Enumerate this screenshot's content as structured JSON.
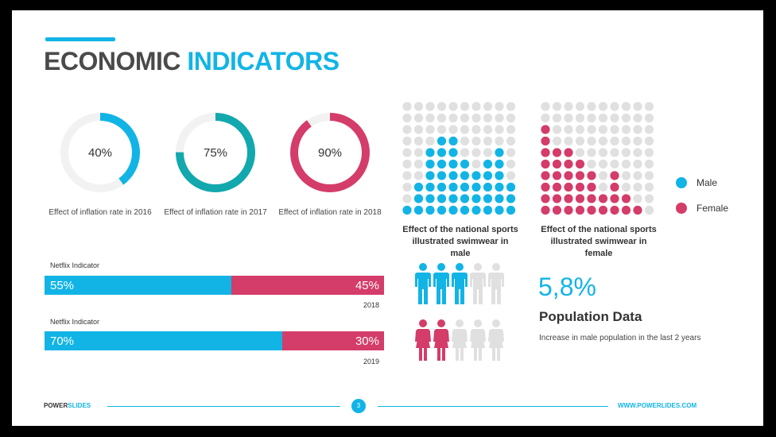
{
  "title": {
    "word1": "ECONOMIC",
    "word2": "INDICATORS"
  },
  "colors": {
    "blue": "#12b4e6",
    "teal": "#12a8ad",
    "pink": "#d43c69",
    "grey": "#e0e0e0"
  },
  "donuts": [
    {
      "value": 40,
      "text": "40%",
      "label": "Effect of inflation rate in 2016",
      "color": "#12b4e6"
    },
    {
      "value": 75,
      "text": "75%",
      "label": "Effect of inflation rate in 2017",
      "color": "#12a8ad"
    },
    {
      "value": 90,
      "text": "90%",
      "label": "Effect of inflation rate in 2018",
      "color": "#d43c69"
    }
  ],
  "bars": [
    {
      "title": "Netflix Indicator",
      "male": 55,
      "male_text": "55%",
      "female_text": "45%",
      "year": "2018"
    },
    {
      "title": "Netflix Indicator",
      "male": 70,
      "male_text": "70%",
      "female_text": "30%",
      "year": "2019"
    }
  ],
  "dot_grids": {
    "male": {
      "caption": "Effect of the national sports illustrated swimwear in male",
      "columns": [
        1,
        3,
        6,
        7,
        7,
        5,
        4,
        5,
        6,
        3
      ]
    },
    "female": {
      "caption": "Effect of the national sports illustrated swimwear in female",
      "columns": [
        8,
        6,
        6,
        5,
        4,
        2,
        4,
        2,
        1,
        0
      ]
    }
  },
  "legend": {
    "male": "Male",
    "female": "Female"
  },
  "people": {
    "male_filled": 3,
    "female_filled": 2,
    "total": 5
  },
  "population": {
    "value": "5,8%",
    "title": "Population Data",
    "description": "Increase in male population in the last 2 years"
  },
  "footer": {
    "brand_part1": "POWER",
    "brand_part2": "SLIDES",
    "page": "3",
    "url": "WWW.POWERLIDES.COM"
  }
}
